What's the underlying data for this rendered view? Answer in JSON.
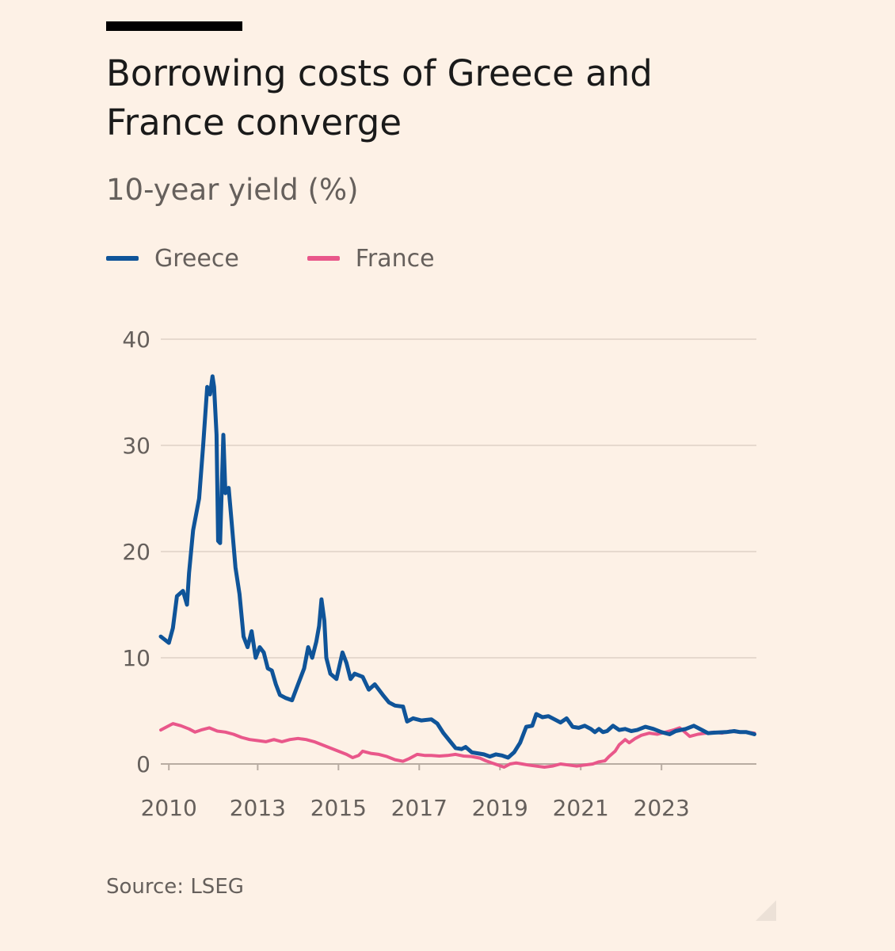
{
  "title": "Borrowing costs of Greece and France converge",
  "subtitle": "10-year yield (%)",
  "source": "Source: LSEG",
  "colors": {
    "background": "#fdf1e6",
    "greece": "#0f5499",
    "france": "#e9578a"
  },
  "legend": [
    {
      "label": "Greece",
      "color": "#0f5499"
    },
    {
      "label": "France",
      "color": "#e9578a"
    }
  ],
  "chart_data": {
    "type": "line",
    "title": "Borrowing costs of Greece and France converge",
    "ylabel": "10-year yield (%)",
    "xlabel": "",
    "xlim": [
      2010.0,
      2024.75
    ],
    "ylim": [
      0,
      40
    ],
    "yticks": [
      0,
      10,
      20,
      30,
      40
    ],
    "xtick_labels": [
      {
        "x": 2010.2,
        "label": "2010"
      },
      {
        "x": 2012.4,
        "label": "2013"
      },
      {
        "x": 2014.4,
        "label": "2015"
      },
      {
        "x": 2016.4,
        "label": "2017"
      },
      {
        "x": 2018.4,
        "label": "2019"
      },
      {
        "x": 2020.4,
        "label": "2021"
      },
      {
        "x": 2022.4,
        "label": "2023"
      }
    ],
    "grid": "horizontal",
    "legend_position": "top-left",
    "series": [
      {
        "name": "Greece",
        "color": "#0f5499",
        "points": [
          [
            2010.0,
            12.0
          ],
          [
            2010.2,
            11.4
          ],
          [
            2010.3,
            12.8
          ],
          [
            2010.4,
            15.8
          ],
          [
            2010.55,
            16.3
          ],
          [
            2010.65,
            15.0
          ],
          [
            2010.7,
            18.0
          ],
          [
            2010.8,
            22.0
          ],
          [
            2010.95,
            25.0
          ],
          [
            2011.05,
            30.0
          ],
          [
            2011.15,
            35.5
          ],
          [
            2011.22,
            34.8
          ],
          [
            2011.28,
            36.5
          ],
          [
            2011.32,
            35.5
          ],
          [
            2011.38,
            31.0
          ],
          [
            2011.42,
            21.0
          ],
          [
            2011.47,
            20.8
          ],
          [
            2011.55,
            31.0
          ],
          [
            2011.6,
            25.5
          ],
          [
            2011.68,
            26.0
          ],
          [
            2011.75,
            23.0
          ],
          [
            2011.85,
            18.5
          ],
          [
            2011.95,
            16.0
          ],
          [
            2012.05,
            12.0
          ],
          [
            2012.15,
            11.0
          ],
          [
            2012.25,
            12.5
          ],
          [
            2012.35,
            10.0
          ],
          [
            2012.45,
            11.0
          ],
          [
            2012.55,
            10.5
          ],
          [
            2012.65,
            9.0
          ],
          [
            2012.75,
            8.8
          ],
          [
            2012.85,
            7.5
          ],
          [
            2012.95,
            6.5
          ],
          [
            2013.1,
            6.2
          ],
          [
            2013.25,
            6.0
          ],
          [
            2013.4,
            7.5
          ],
          [
            2013.55,
            9.0
          ],
          [
            2013.65,
            11.0
          ],
          [
            2013.75,
            10.0
          ],
          [
            2013.85,
            11.5
          ],
          [
            2013.92,
            13.0
          ],
          [
            2013.98,
            15.5
          ],
          [
            2014.05,
            13.5
          ],
          [
            2014.1,
            10.0
          ],
          [
            2014.2,
            8.5
          ],
          [
            2014.35,
            8.0
          ],
          [
            2014.5,
            10.5
          ],
          [
            2014.6,
            9.5
          ],
          [
            2014.7,
            8.0
          ],
          [
            2014.8,
            8.5
          ],
          [
            2015.0,
            8.2
          ],
          [
            2015.15,
            7.0
          ],
          [
            2015.3,
            7.5
          ],
          [
            2015.5,
            6.5
          ],
          [
            2015.65,
            5.8
          ],
          [
            2015.8,
            5.5
          ],
          [
            2016.0,
            5.4
          ],
          [
            2016.1,
            4.0
          ],
          [
            2016.25,
            4.3
          ],
          [
            2016.45,
            4.1
          ],
          [
            2016.7,
            4.2
          ],
          [
            2016.85,
            3.8
          ],
          [
            2017.0,
            2.9
          ],
          [
            2017.15,
            2.2
          ],
          [
            2017.3,
            1.5
          ],
          [
            2017.45,
            1.4
          ],
          [
            2017.55,
            1.6
          ],
          [
            2017.7,
            1.1
          ],
          [
            2017.85,
            1.0
          ],
          [
            2018.0,
            0.9
          ],
          [
            2018.15,
            0.7
          ],
          [
            2018.3,
            0.9
          ],
          [
            2018.45,
            0.8
          ],
          [
            2018.6,
            0.6
          ],
          [
            2018.75,
            1.1
          ],
          [
            2018.9,
            2.0
          ],
          [
            2019.05,
            3.5
          ],
          [
            2019.2,
            3.6
          ],
          [
            2019.3,
            4.7
          ],
          [
            2019.45,
            4.4
          ],
          [
            2019.6,
            4.5
          ],
          [
            2019.75,
            4.2
          ],
          [
            2019.9,
            3.9
          ],
          [
            2020.05,
            4.3
          ],
          [
            2020.2,
            3.5
          ],
          [
            2020.35,
            3.4
          ],
          [
            2020.5,
            3.6
          ],
          [
            2020.65,
            3.3
          ],
          [
            2020.75,
            3.0
          ],
          [
            2020.85,
            3.3
          ],
          [
            2020.95,
            3.0
          ],
          [
            2021.05,
            3.1
          ],
          [
            2021.2,
            3.6
          ],
          [
            2021.35,
            3.2
          ],
          [
            2021.5,
            3.3
          ],
          [
            2021.65,
            3.1
          ],
          [
            2021.8,
            3.2
          ],
          [
            2022.0,
            3.5
          ],
          [
            2022.2,
            3.3
          ],
          [
            2022.4,
            3.0
          ],
          [
            2022.6,
            2.8
          ],
          [
            2022.75,
            3.1
          ],
          [
            2023.0,
            3.3
          ],
          [
            2023.2,
            3.6
          ],
          [
            2023.4,
            3.2
          ],
          [
            2023.55,
            2.9
          ],
          [
            2023.7,
            2.95
          ],
          [
            2024.0,
            3.0
          ],
          [
            2024.2,
            3.1
          ],
          [
            2024.35,
            3.0
          ],
          [
            2024.5,
            3.0
          ],
          [
            2024.6,
            2.9
          ],
          [
            2024.7,
            2.8
          ]
        ]
      },
      {
        "name": "France",
        "color": "#e9578a",
        "points": [
          [
            2010.0,
            3.2
          ],
          [
            2010.15,
            3.5
          ],
          [
            2010.3,
            3.8
          ],
          [
            2010.5,
            3.6
          ],
          [
            2010.7,
            3.3
          ],
          [
            2010.85,
            3.0
          ],
          [
            2011.0,
            3.2
          ],
          [
            2011.2,
            3.4
          ],
          [
            2011.4,
            3.1
          ],
          [
            2011.6,
            3.0
          ],
          [
            2011.8,
            2.8
          ],
          [
            2012.0,
            2.5
          ],
          [
            2012.2,
            2.3
          ],
          [
            2012.4,
            2.2
          ],
          [
            2012.6,
            2.1
          ],
          [
            2012.8,
            2.3
          ],
          [
            2013.0,
            2.1
          ],
          [
            2013.2,
            2.3
          ],
          [
            2013.4,
            2.4
          ],
          [
            2013.6,
            2.3
          ],
          [
            2013.8,
            2.1
          ],
          [
            2014.0,
            1.8
          ],
          [
            2014.2,
            1.5
          ],
          [
            2014.4,
            1.2
          ],
          [
            2014.6,
            0.9
          ],
          [
            2014.75,
            0.6
          ],
          [
            2014.9,
            0.8
          ],
          [
            2015.0,
            1.2
          ],
          [
            2015.2,
            1.0
          ],
          [
            2015.4,
            0.9
          ],
          [
            2015.6,
            0.7
          ],
          [
            2015.8,
            0.4
          ],
          [
            2016.0,
            0.25
          ],
          [
            2016.15,
            0.5
          ],
          [
            2016.35,
            0.9
          ],
          [
            2016.55,
            0.8
          ],
          [
            2016.7,
            0.8
          ],
          [
            2016.9,
            0.75
          ],
          [
            2017.1,
            0.8
          ],
          [
            2017.3,
            0.9
          ],
          [
            2017.5,
            0.75
          ],
          [
            2017.7,
            0.7
          ],
          [
            2017.9,
            0.55
          ],
          [
            2018.05,
            0.3
          ],
          [
            2018.2,
            0.1
          ],
          [
            2018.35,
            -0.1
          ],
          [
            2018.5,
            -0.3
          ],
          [
            2018.65,
            0.0
          ],
          [
            2018.8,
            0.1
          ],
          [
            2018.95,
            0.0
          ],
          [
            2019.1,
            -0.1
          ],
          [
            2019.3,
            -0.2
          ],
          [
            2019.5,
            -0.3
          ],
          [
            2019.7,
            -0.2
          ],
          [
            2019.9,
            0.0
          ],
          [
            2020.1,
            -0.1
          ],
          [
            2020.3,
            -0.2
          ],
          [
            2020.5,
            -0.1
          ],
          [
            2020.7,
            0.0
          ],
          [
            2020.85,
            0.2
          ],
          [
            2021.0,
            0.3
          ],
          [
            2021.1,
            0.7
          ],
          [
            2021.25,
            1.2
          ],
          [
            2021.35,
            1.8
          ],
          [
            2021.5,
            2.3
          ],
          [
            2021.6,
            2.0
          ],
          [
            2021.75,
            2.4
          ],
          [
            2021.9,
            2.7
          ],
          [
            2022.1,
            2.9
          ],
          [
            2022.3,
            2.8
          ],
          [
            2022.5,
            3.0
          ],
          [
            2022.7,
            3.2
          ],
          [
            2022.85,
            3.4
          ],
          [
            2022.95,
            3.1
          ],
          [
            2023.1,
            2.6
          ],
          [
            2023.3,
            2.8
          ],
          [
            2023.5,
            2.9
          ],
          [
            2023.7,
            3.0
          ],
          [
            2023.9,
            2.9
          ],
          [
            2024.1,
            3.1
          ],
          [
            2024.3,
            3.0
          ],
          [
            2024.5,
            3.0
          ],
          [
            2024.7,
            2.9
          ]
        ]
      }
    ]
  }
}
